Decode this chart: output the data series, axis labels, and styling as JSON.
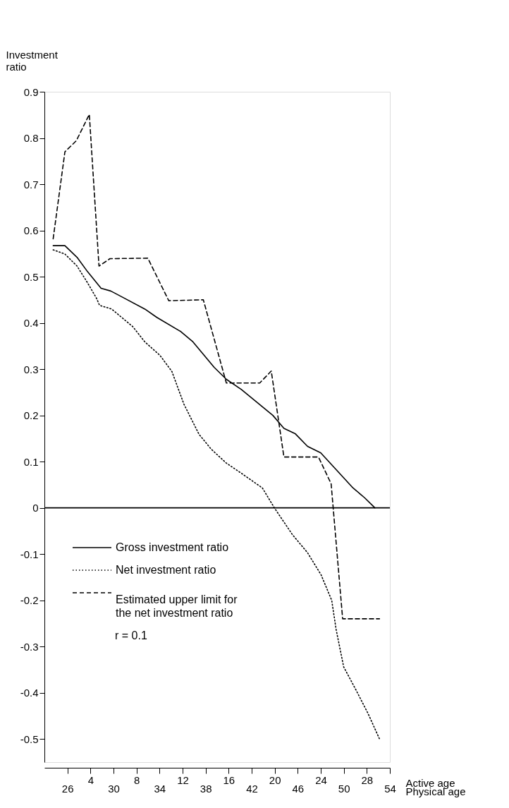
{
  "chart_data": {
    "type": "line",
    "ylabel": "Investment ratio",
    "xlabel": "Active age",
    "x2label": "Physical age",
    "xlim": [
      0,
      30
    ],
    "xticks": [
      {
        "value": 2,
        "label": null
      },
      4,
      {
        "value": 6,
        "label": null
      },
      8,
      {
        "value": 10,
        "label": null
      },
      12,
      {
        "value": 14,
        "label": null
      },
      16,
      {
        "value": 18,
        "label": null
      },
      20,
      {
        "value": 22,
        "label": null
      },
      24,
      {
        "value": 26,
        "label": null
      },
      28,
      {
        "value": 30,
        "label": null
      }
    ],
    "x2lim": [
      24,
      54
    ],
    "x2ticks": [
      26,
      30,
      34,
      38,
      42,
      46,
      50,
      54
    ],
    "ylim": [
      -0.55,
      0.9
    ],
    "yticks": [
      -0.5,
      -0.4,
      -0.3,
      -0.2,
      -0.1,
      0,
      0.1,
      0.2,
      0.3,
      0.4,
      0.5,
      0.6,
      0.7,
      0.8,
      0.9
    ],
    "grid": false,
    "legend": "left",
    "marker": "none",
    "ref_lines": [
      {
        "axis": "y",
        "value": 0,
        "label": null,
        "color": "#000000"
      }
    ],
    "annotations": [
      "r = 0.1"
    ],
    "series": [
      {
        "name": "Gross investment ratio",
        "color": "#000000",
        "line_style": "solid",
        "x": [
          0.76,
          1.78,
          2.83,
          3.74,
          4.92,
          5.76,
          6.75,
          8.72,
          9.76,
          11.86,
          12.9,
          14.74,
          15.8,
          17.1,
          19.84,
          20.8,
          21.8,
          22.85,
          24.0,
          26.8,
          27.8,
          28.7
        ],
        "values": [
          0.567,
          0.567,
          0.542,
          0.511,
          0.475,
          0.469,
          0.456,
          0.43,
          0.412,
          0.381,
          0.359,
          0.304,
          0.278,
          0.256,
          0.2,
          0.172,
          0.16,
          0.133,
          0.119,
          0.043,
          0.022,
          0
        ]
      },
      {
        "name": "Net investment ratio",
        "color": "#000000",
        "line_style": "dotted",
        "x": [
          0.76,
          1.78,
          2.83,
          3.74,
          4.53,
          4.79,
          5.84,
          7.67,
          8.72,
          10.03,
          11.07,
          12.12,
          13.43,
          14.48,
          15.79,
          17.09,
          18.93,
          19.97,
          21.54,
          22.85,
          24.03,
          24.95,
          25.34,
          25.99,
          27.04,
          28.09,
          29.14
        ],
        "values": [
          0.558,
          0.549,
          0.523,
          0.487,
          0.453,
          0.438,
          0.43,
          0.392,
          0.359,
          0.33,
          0.295,
          0.224,
          0.159,
          0.127,
          0.097,
          0.075,
          0.043,
          0,
          -0.058,
          -0.097,
          -0.145,
          -0.2,
          -0.264,
          -0.344,
          -0.393,
          -0.444,
          -0.502
        ]
      },
      {
        "name": "Estimated upper limit for the net investment ratio",
        "color": "#000000",
        "line_style": "dashed",
        "x": [
          0.76,
          1.78,
          2.77,
          3.9,
          4.74,
          5.7,
          8.98,
          10.8,
          13.8,
          15.8,
          18.7,
          19.7,
          20.8,
          23.8,
          24.9,
          25.9,
          29.1
        ],
        "values": [
          0.582,
          0.77,
          0.794,
          0.851,
          0.523,
          0.539,
          0.54,
          0.448,
          0.45,
          0.27,
          0.27,
          0.296,
          0.11,
          0.11,
          0.052,
          -0.24,
          -0.24
        ]
      }
    ]
  }
}
